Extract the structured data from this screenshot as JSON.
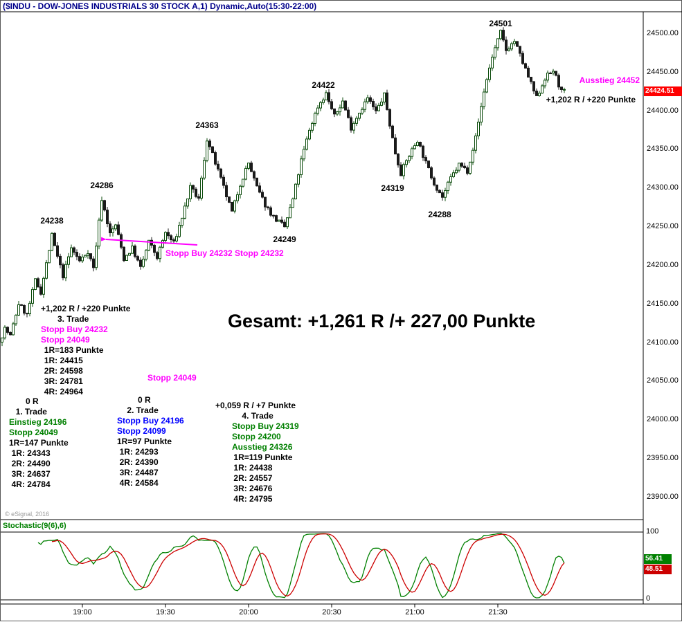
{
  "window": {
    "title": "($INDU - DOW-JONES INDUSTRIALS 30 STOCK A,1) Dynamic,Auto(15:30-22:00)"
  },
  "colors": {
    "magenta": "#ff00ff",
    "green": "#008000",
    "blue": "#0000ff",
    "red": "#ff0000",
    "title": "#00008b",
    "up": "#0a4a0a",
    "down": "#1a1a1a",
    "stoch-k": "#008000",
    "stoch-d": "#cc0000"
  },
  "chart_data": {
    "type": "candlestick",
    "symbol": "$INDU",
    "interval": "1-minute",
    "title": "DOW-JONES INDUSTRIALS 30 STOCK, 1 min candles with Stochastic subchart",
    "last_price": "24424.51",
    "y_ticks": [
      "24500.00",
      "24450.00",
      "24400.00",
      "24350.00",
      "24300.00",
      "24250.00",
      "24200.00",
      "24150.00",
      "24100.00",
      "24050.00",
      "24000.00",
      "23950.00",
      "23900.00"
    ],
    "y_axis_range": [
      23870,
      24525
    ],
    "x_labels": [
      {
        "label": "19:00",
        "minute": 1140
      },
      {
        "label": "19:30",
        "minute": 1170
      },
      {
        "label": "20:00",
        "minute": 1200
      },
      {
        "label": "20:30",
        "minute": 1230
      },
      {
        "label": "21:00",
        "minute": 1260
      },
      {
        "label": "21:30",
        "minute": 1290
      }
    ],
    "start_minute": 1111,
    "end_minute": 1314,
    "noise_seed": 7,
    "price_keypoints": [
      [
        1111,
        24100
      ],
      [
        1113,
        24118
      ],
      [
        1115,
        24108
      ],
      [
        1118,
        24150
      ],
      [
        1121,
        24135
      ],
      [
        1124,
        24180
      ],
      [
        1126,
        24165
      ],
      [
        1130,
        24238
      ],
      [
        1132,
        24210
      ],
      [
        1134,
        24186
      ],
      [
        1137,
        24222
      ],
      [
        1140,
        24205
      ],
      [
        1143,
        24218
      ],
      [
        1145,
        24196
      ],
      [
        1148,
        24286
      ],
      [
        1151,
        24240
      ],
      [
        1153,
        24252
      ],
      [
        1156,
        24208
      ],
      [
        1159,
        24222
      ],
      [
        1162,
        24196
      ],
      [
        1165,
        24230
      ],
      [
        1168,
        24210
      ],
      [
        1171,
        24242
      ],
      [
        1174,
        24228
      ],
      [
        1177,
        24262
      ],
      [
        1180,
        24300
      ],
      [
        1183,
        24285
      ],
      [
        1186,
        24363
      ],
      [
        1189,
        24332
      ],
      [
        1192,
        24300
      ],
      [
        1195,
        24268
      ],
      [
        1198,
        24305
      ],
      [
        1201,
        24332
      ],
      [
        1204,
        24300
      ],
      [
        1207,
        24278
      ],
      [
        1210,
        24262
      ],
      [
        1214,
        24249
      ],
      [
        1217,
        24285
      ],
      [
        1220,
        24335
      ],
      [
        1223,
        24375
      ],
      [
        1226,
        24405
      ],
      [
        1229,
        24422
      ],
      [
        1232,
        24392
      ],
      [
        1235,
        24412
      ],
      [
        1238,
        24378
      ],
      [
        1241,
        24398
      ],
      [
        1244,
        24416
      ],
      [
        1247,
        24398
      ],
      [
        1250,
        24420
      ],
      [
        1252,
        24382
      ],
      [
        1254,
        24345
      ],
      [
        1256,
        24319
      ],
      [
        1259,
        24342
      ],
      [
        1262,
        24362
      ],
      [
        1265,
        24332
      ],
      [
        1268,
        24306
      ],
      [
        1271,
        24288
      ],
      [
        1274,
        24312
      ],
      [
        1277,
        24330
      ],
      [
        1280,
        24322
      ],
      [
        1283,
        24365
      ],
      [
        1286,
        24425
      ],
      [
        1289,
        24470
      ],
      [
        1292,
        24501
      ],
      [
        1294,
        24478
      ],
      [
        1297,
        24490
      ],
      [
        1300,
        24462
      ],
      [
        1303,
        24434
      ],
      [
        1305,
        24416
      ],
      [
        1308,
        24442
      ],
      [
        1311,
        24452
      ],
      [
        1314,
        24424
      ]
    ],
    "peak_labels": [
      {
        "text": "24238",
        "minute": 1129,
        "price": 24258
      },
      {
        "text": "24286",
        "minute": 1147,
        "price": 24304
      },
      {
        "text": "24363",
        "minute": 1185,
        "price": 24382
      },
      {
        "text": "24249",
        "minute": 1213,
        "price": 24234
      },
      {
        "text": "24422",
        "minute": 1227,
        "price": 24434
      },
      {
        "text": "24319",
        "minute": 1252,
        "price": 24300
      },
      {
        "text": "24288",
        "minute": 1269,
        "price": 24266
      },
      {
        "text": "24501",
        "minute": 1291,
        "price": 24513
      }
    ],
    "stochastic": {
      "label": "Stochastic(9(6),6)",
      "levels": [
        "100",
        "0"
      ],
      "last_k": "56.41",
      "last_d": "48.51"
    }
  },
  "annotations": {
    "exit_label": "Ausstieg 24452",
    "result_top": "+1,202 R / +220 Punkte",
    "total": "Gesamt: +1,261 R /+ 227,00 Punkte",
    "stop_arrow_label": "Stopp Buy 24232 Stopp 24232",
    "trade2_stop_above": "Stopp 24049",
    "copyright": "© eSignal, 2016",
    "trade3": {
      "lines": [
        {
          "t": "+1,202 R / +220 Punkte",
          "c": "k",
          "p": 0
        },
        {
          "t": "3. Trade",
          "c": "k",
          "p": 2
        },
        {
          "t": "Stopp Buy 24232",
          "c": "m",
          "p": 0
        },
        {
          "t": "Stopp 24049",
          "c": "m",
          "p": 0
        },
        {
          "t": "1R=183 Punkte",
          "c": "k",
          "p": 0.4
        },
        {
          "t": "1R: 24415",
          "c": "k",
          "p": 0.4
        },
        {
          "t": "2R: 24598",
          "c": "k",
          "p": 0.4
        },
        {
          "t": "3R: 24781",
          "c": "k",
          "p": 0.4
        },
        {
          "t": "4R: 24964",
          "c": "k",
          "p": 0.4
        }
      ]
    },
    "trade1": {
      "lines": [
        {
          "t": "0 R",
          "c": "k",
          "p": 2
        },
        {
          "t": "1. Trade",
          "c": "k",
          "p": 0.8
        },
        {
          "t": "Einstieg 24196",
          "c": "g",
          "p": 0
        },
        {
          "t": "Stopp 24049",
          "c": "g",
          "p": 0
        },
        {
          "t": "1R=147 Punkte",
          "c": "k",
          "p": 0
        },
        {
          "t": "1R: 24343",
          "c": "k",
          "p": 0.3
        },
        {
          "t": "2R: 24490",
          "c": "k",
          "p": 0.3
        },
        {
          "t": "3R: 24637",
          "c": "k",
          "p": 0.3
        },
        {
          "t": "4R: 24784",
          "c": "k",
          "p": 0.3
        }
      ]
    },
    "trade2": {
      "lines": [
        {
          "t": "0 R",
          "c": "k",
          "p": 2.5
        },
        {
          "t": "2. Trade",
          "c": "k",
          "p": 1.2
        },
        {
          "t": "Stopp Buy 24196",
          "c": "b",
          "p": 0
        },
        {
          "t": "Stopp 24099",
          "c": "b",
          "p": 0
        },
        {
          "t": "1R=97 Punkte",
          "c": "k",
          "p": 0
        },
        {
          "t": "1R: 24293",
          "c": "k",
          "p": 0.3
        },
        {
          "t": "2R: 24390",
          "c": "k",
          "p": 0.3
        },
        {
          "t": "3R: 24487",
          "c": "k",
          "p": 0.3
        },
        {
          "t": "4R: 24584",
          "c": "k",
          "p": 0.3
        }
      ]
    },
    "trade4": {
      "lines": [
        {
          "t": "+0,059 R / +7 Punkte",
          "c": "k",
          "p": 0
        },
        {
          "t": "4. Trade",
          "c": "k",
          "p": 3.2
        },
        {
          "t": "Stopp Buy 24319",
          "c": "g",
          "p": 2
        },
        {
          "t": "Stopp 24200",
          "c": "g",
          "p": 2
        },
        {
          "t": "Ausstieg 24326",
          "c": "g",
          "p": 2
        },
        {
          "t": "1R=119 Punkte",
          "c": "k",
          "p": 2.2
        },
        {
          "t": "1R: 24438",
          "c": "k",
          "p": 2.2
        },
        {
          "t": "2R: 24557",
          "c": "k",
          "p": 2.2
        },
        {
          "t": "3R: 24676",
          "c": "k",
          "p": 2.2
        },
        {
          "t": "4R: 24795",
          "c": "k",
          "p": 2.2
        }
      ]
    }
  }
}
